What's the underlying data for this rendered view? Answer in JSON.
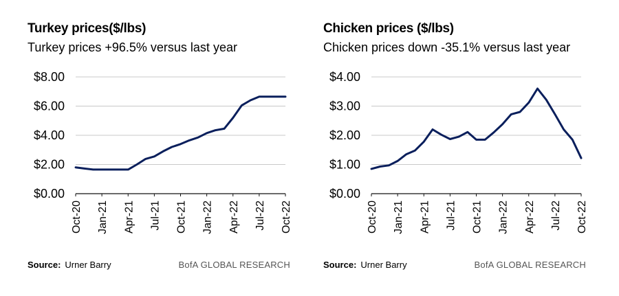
{
  "chart_data": [
    {
      "type": "line",
      "title": "Turkey prices($/lbs)",
      "subtitle": "Turkey prices +96.5% versus last year",
      "source_label": "Source:",
      "source": "Urner Barry",
      "brand": "BofA GLOBAL RESEARCH",
      "x_tick_labels": [
        "Oct-20",
        "Jan-21",
        "Apr-21",
        "Jul-21",
        "Oct-21",
        "Jan-22",
        "Apr-22",
        "Jul-22",
        "Oct-22"
      ],
      "y_tick_labels": [
        "$0.00",
        "$2.00",
        "$4.00",
        "$6.00",
        "$8.00"
      ],
      "y_ticks": [
        0,
        2,
        4,
        6,
        8
      ],
      "ylim": [
        0,
        8
      ],
      "grid": true,
      "color": "#0a1f5c",
      "series": [
        {
          "values": [
            1.8,
            1.72,
            1.65,
            1.65,
            1.65,
            1.65,
            1.65,
            2.0,
            2.38,
            2.55,
            2.9,
            3.2,
            3.4,
            3.65,
            3.85,
            4.15,
            4.35,
            4.45,
            5.2,
            6.05,
            6.4,
            6.65,
            6.65,
            6.65,
            6.65
          ]
        }
      ]
    },
    {
      "type": "line",
      "title": "Chicken prices ($/lbs)",
      "subtitle": "Chicken prices down -35.1% versus last year",
      "source_label": "Source:",
      "source": "Urner Barry",
      "brand": "BofA GLOBAL RESEARCH",
      "x_tick_labels": [
        "Oct-20",
        "Jan-21",
        "Apr-21",
        "Jul-21",
        "Oct-21",
        "Jan-22",
        "Apr-22",
        "Jul-22",
        "Oct-22"
      ],
      "y_tick_labels": [
        "$0.00",
        "$1.00",
        "$2.00",
        "$3.00",
        "$4.00"
      ],
      "y_ticks": [
        0,
        1,
        2,
        3,
        4
      ],
      "ylim": [
        0,
        4
      ],
      "grid": true,
      "color": "#0a1f5c",
      "series": [
        {
          "values": [
            0.85,
            0.93,
            0.97,
            1.12,
            1.35,
            1.48,
            1.78,
            2.2,
            2.02,
            1.87,
            1.95,
            2.11,
            1.85,
            1.85,
            2.1,
            2.38,
            2.72,
            2.8,
            3.12,
            3.6,
            3.22,
            2.72,
            2.2,
            1.85,
            1.22
          ]
        }
      ]
    }
  ]
}
